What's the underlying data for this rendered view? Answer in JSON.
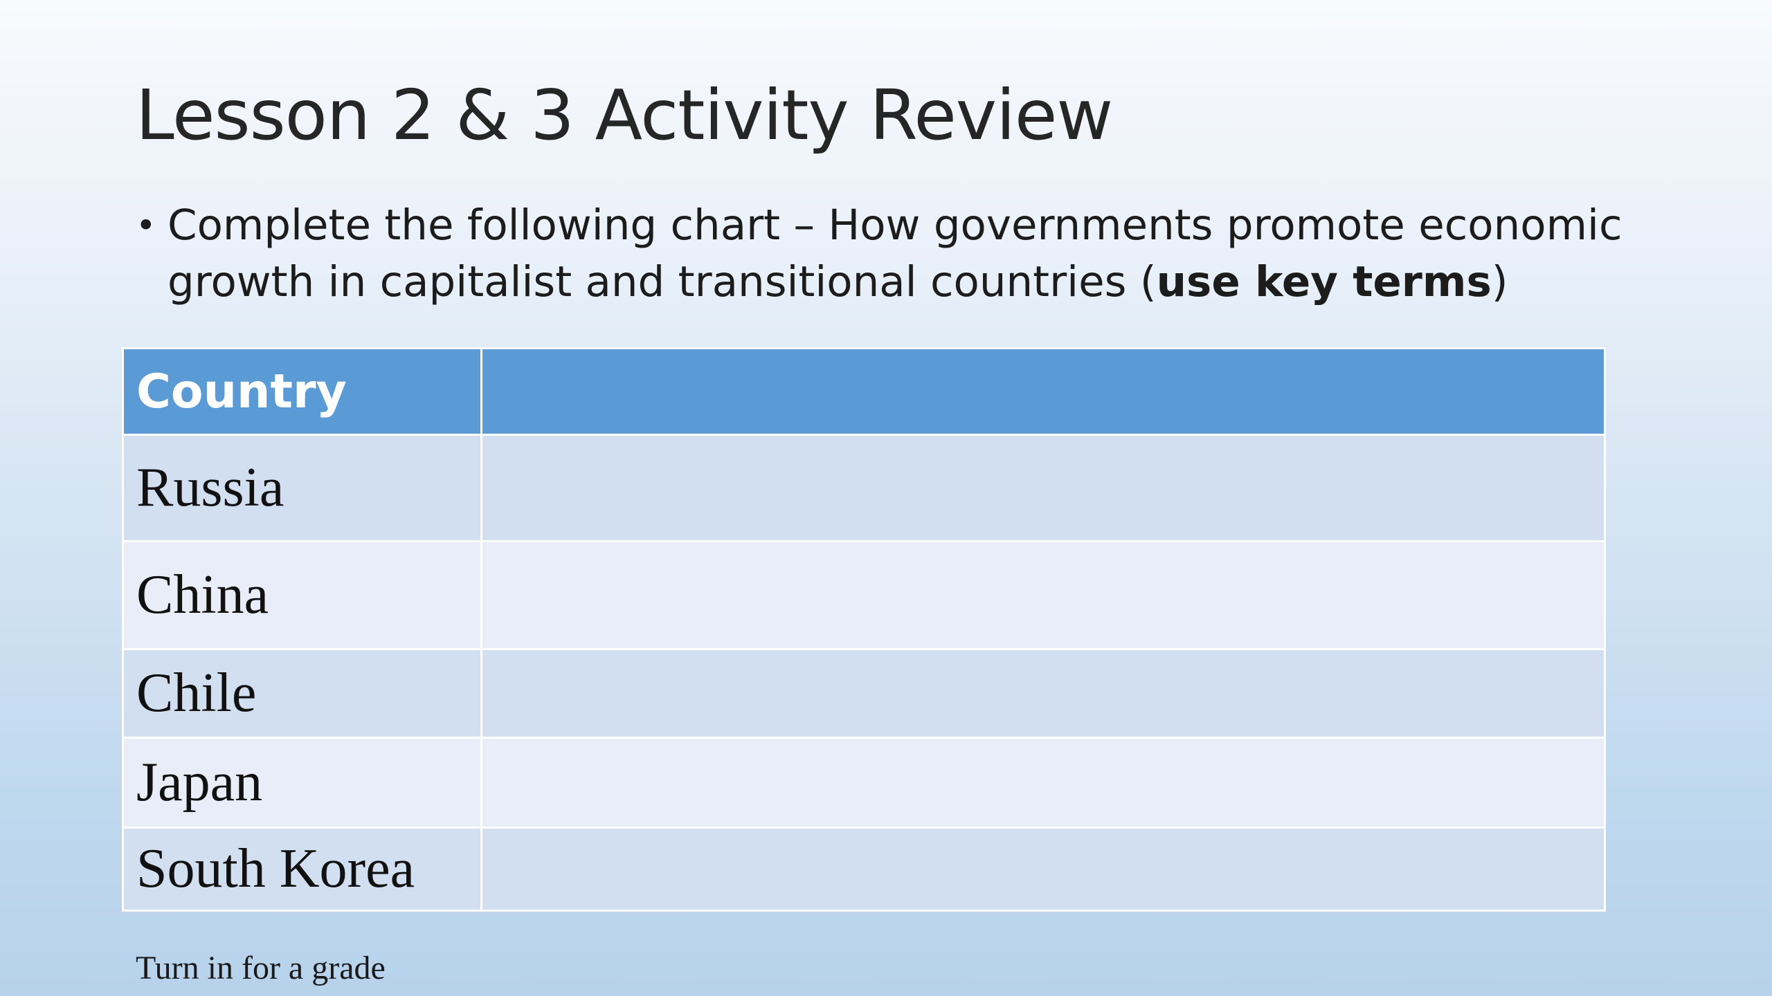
{
  "slide": {
    "title": "Lesson 2 & 3 Activity Review",
    "bullet": {
      "line1": "Complete the following chart – How governments promote economic",
      "line2_prefix": "growth in capitalist and transitional countries (",
      "line2_bold": "use key terms",
      "line2_suffix": ")"
    },
    "table": {
      "headers": [
        "Country",
        ""
      ],
      "rows": [
        {
          "country": "Russia",
          "answer": ""
        },
        {
          "country": "China",
          "answer": ""
        },
        {
          "country": "Chile",
          "answer": ""
        },
        {
          "country": "Japan",
          "answer": ""
        },
        {
          "country": "South Korea",
          "answer": ""
        }
      ]
    },
    "footer_note": "Turn in for a grade"
  },
  "colors": {
    "header_fill": "#5b9bd5",
    "row_dark": "#d2dff0",
    "row_light": "#e9edf7"
  }
}
